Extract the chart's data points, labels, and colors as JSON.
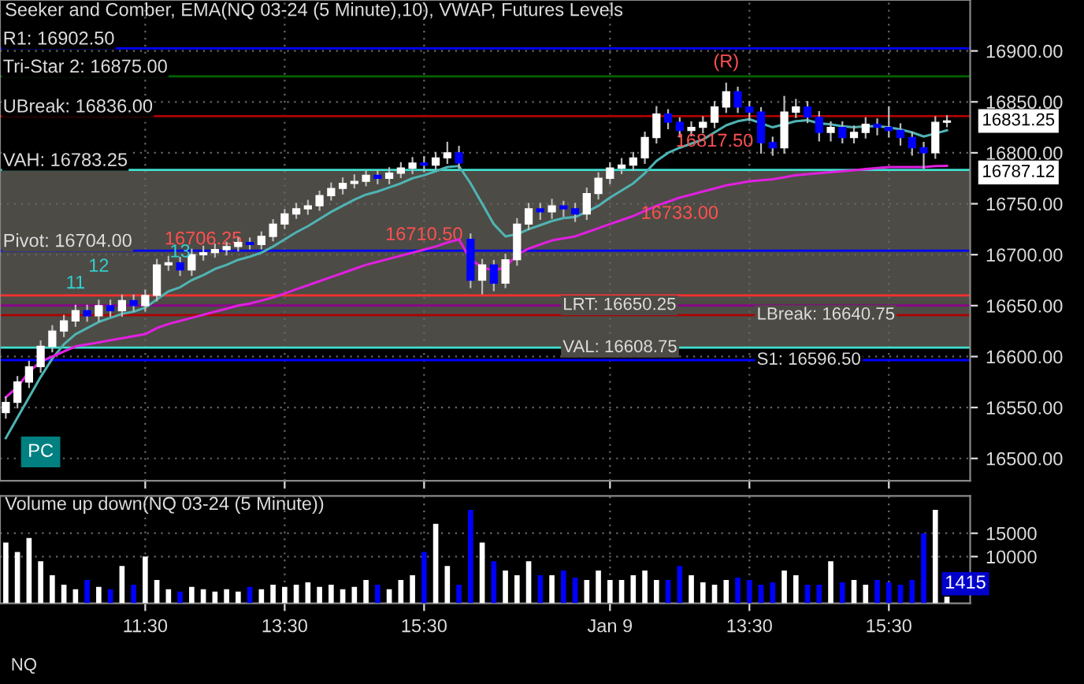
{
  "chart_data": [
    {
      "type": "candlestick",
      "title": "Seeker and Comber, EMA(NQ 03-24 (5 Minute),10), VWAP, Futures Levels",
      "categories": [
        null,
        null,
        null,
        null,
        null,
        null,
        null,
        null,
        null,
        null,
        null,
        null,
        null,
        null,
        null,
        null,
        null,
        null,
        null,
        null,
        null,
        null,
        null,
        null,
        null,
        null,
        null,
        null,
        null,
        null,
        null,
        null,
        null,
        null,
        null,
        null,
        null,
        null,
        null,
        null,
        null,
        null,
        null,
        null,
        null,
        null,
        null,
        null,
        null,
        null,
        null,
        null,
        null,
        null,
        null,
        null,
        null,
        null,
        null,
        null,
        null,
        null,
        null,
        null,
        null,
        null,
        null,
        null,
        null,
        null,
        null,
        null,
        null,
        null,
        null,
        null,
        null,
        null,
        null,
        null,
        null,
        null
      ],
      "ohlc": [
        [
          16545,
          16560,
          16540,
          16555
        ],
        [
          16555,
          16580,
          16550,
          16575
        ],
        [
          16575,
          16595,
          16570,
          16590
        ],
        [
          16590,
          16615,
          16585,
          16610
        ],
        [
          16610,
          16630,
          16605,
          16625
        ],
        [
          16625,
          16640,
          16620,
          16635
        ],
        [
          16635,
          16650,
          16630,
          16645
        ],
        [
          16645,
          16650,
          16635,
          16640
        ],
        [
          16640,
          16655,
          16635,
          16650
        ],
        [
          16650,
          16655,
          16640,
          16645
        ],
        [
          16645,
          16660,
          16640,
          16655
        ],
        [
          16655,
          16660,
          16645,
          16650
        ],
        [
          16650,
          16665,
          16645,
          16660
        ],
        [
          16660,
          16695,
          16655,
          16690
        ],
        [
          16690,
          16698,
          16685,
          16692
        ],
        [
          16692,
          16697,
          16680,
          16685
        ],
        [
          16685,
          16705,
          16680,
          16700
        ],
        [
          16700,
          16708,
          16695,
          16702
        ],
        [
          16702,
          16710,
          16698,
          16705
        ],
        [
          16705,
          16712,
          16700,
          16708
        ],
        [
          16708,
          16716,
          16704,
          16712
        ],
        [
          16712,
          16716,
          16706,
          16710
        ],
        [
          16710,
          16722,
          16706,
          16718
        ],
        [
          16718,
          16734,
          16714,
          16730
        ],
        [
          16730,
          16744,
          16726,
          16740
        ],
        [
          16740,
          16750,
          16736,
          16745
        ],
        [
          16745,
          16753,
          16740,
          16748
        ],
        [
          16748,
          16762,
          16744,
          16758
        ],
        [
          16758,
          16770,
          16754,
          16765
        ],
        [
          16765,
          16775,
          16760,
          16770
        ],
        [
          16770,
          16778,
          16766,
          16772
        ],
        [
          16772,
          16782,
          16768,
          16778
        ],
        [
          16778,
          16782,
          16770,
          16775
        ],
        [
          16775,
          16785,
          16770,
          16780
        ],
        [
          16780,
          16790,
          16776,
          16785
        ],
        [
          16785,
          16795,
          16780,
          16790
        ],
        [
          16790,
          16796,
          16782,
          16788
        ],
        [
          16788,
          16800,
          16784,
          16795
        ],
        [
          16795,
          16810,
          16790,
          16800
        ],
        [
          16800,
          16806,
          16785,
          16790
        ],
        [
          16715,
          16720,
          16668,
          16675
        ],
        [
          16675,
          16695,
          16662,
          16690
        ],
        [
          16690,
          16694,
          16665,
          16672
        ],
        [
          16672,
          16700,
          16668,
          16695
        ],
        [
          16695,
          16735,
          16690,
          16730
        ],
        [
          16730,
          16750,
          16725,
          16745
        ],
        [
          16745,
          16750,
          16735,
          16742
        ],
        [
          16742,
          16754,
          16736,
          16748
        ],
        [
          16748,
          16752,
          16738,
          16745
        ],
        [
          16745,
          16750,
          16733,
          16740
        ],
        [
          16740,
          16765,
          16735,
          16760
        ],
        [
          16760,
          16780,
          16755,
          16775
        ],
        [
          16775,
          16790,
          16770,
          16785
        ],
        [
          16785,
          16794,
          16780,
          16788
        ],
        [
          16788,
          16800,
          16783,
          16795
        ],
        [
          16795,
          16820,
          16790,
          16815
        ],
        [
          16815,
          16845,
          16810,
          16838
        ],
        [
          16838,
          16842,
          16824,
          16830
        ],
        [
          16830,
          16834,
          16816,
          16822
        ],
        [
          16822,
          16830,
          16817,
          16825
        ],
        [
          16825,
          16835,
          16820,
          16830
        ],
        [
          16830,
          16850,
          16825,
          16845
        ],
        [
          16845,
          16868,
          16840,
          16860
        ],
        [
          16860,
          16864,
          16840,
          16845
        ],
        [
          16845,
          16850,
          16832,
          16840
        ],
        [
          16840,
          16844,
          16800,
          16810
        ],
        [
          16810,
          16815,
          16798,
          16805
        ],
        [
          16805,
          16855,
          16800,
          16840
        ],
        [
          16840,
          16852,
          16835,
          16845
        ],
        [
          16845,
          16850,
          16830,
          16835
        ],
        [
          16835,
          16840,
          16812,
          16820
        ],
        [
          16820,
          16830,
          16812,
          16825
        ],
        [
          16825,
          16830,
          16810,
          16815
        ],
        [
          16815,
          16826,
          16810,
          16820
        ],
        [
          16820,
          16834,
          16815,
          16828
        ],
        [
          16828,
          16833,
          16818,
          16825
        ],
        [
          16825,
          16845,
          16816,
          16822
        ],
        [
          16822,
          16828,
          16808,
          16815
        ],
        [
          16815,
          16820,
          16798,
          16805
        ],
        [
          16805,
          16810,
          16785,
          16800
        ],
        [
          16800,
          16835,
          16795,
          16830
        ],
        [
          16830,
          16836,
          16826,
          16831.25
        ]
      ],
      "series": [
        {
          "type": "line",
          "color": "#4fb3b3",
          "values": [
            16520,
            16540,
            16560,
            16580,
            16598,
            16612,
            16622,
            16628,
            16634,
            16638,
            16642,
            16644,
            16648,
            16656,
            16664,
            16668,
            16675,
            16680,
            16686,
            16690,
            16695,
            16698,
            16702,
            16708,
            16715,
            16722,
            16728,
            16735,
            16742,
            16748,
            16754,
            16759,
            16762,
            16766,
            16770,
            16775,
            16778,
            16782,
            16786,
            16787,
            16770,
            16750,
            16730,
            16718,
            16720,
            16725,
            16729,
            16733,
            16736,
            16737,
            16742,
            16748,
            16756,
            16763,
            16770,
            16780,
            16792,
            16800,
            16805,
            16809,
            16813,
            16820,
            16827,
            16831,
            16833,
            16829,
            16825,
            16828,
            16831,
            16832,
            16829,
            16828,
            16826,
            16825,
            16826,
            16826,
            16825,
            16823,
            16820,
            16816,
            16819,
            16822
          ]
        },
        {
          "type": "line",
          "color": "#e020e0",
          "values": [
            16560,
            16570,
            16585,
            16595,
            16600,
            16605,
            16610,
            16612,
            16614,
            16616,
            16618,
            16620,
            16622,
            16628,
            16632,
            16635,
            16638,
            16641,
            16644,
            16647,
            16650,
            16652,
            16655,
            16658,
            16662,
            16666,
            16670,
            16674,
            16678,
            16682,
            16686,
            16690,
            16693,
            16696,
            16699,
            16702,
            16705,
            16708,
            16712,
            16715,
            16695,
            16688,
            16684,
            16688,
            16700,
            16706,
            16710,
            16714,
            16716,
            16718,
            16722,
            16726,
            16730,
            16734,
            16738,
            16743,
            16748,
            16752,
            16756,
            16759,
            16762,
            16765,
            16768,
            16770,
            16772,
            16773,
            16774,
            16776,
            16778,
            16779,
            16780,
            16781,
            16782,
            16783,
            16784,
            16785,
            16786,
            16786,
            16786,
            16786,
            16787,
            16787.12
          ]
        }
      ],
      "ylim": [
        16478,
        16950
      ],
      "yticks": [
        {
          "value": 16500,
          "label": "16500.00"
        },
        {
          "value": 16550,
          "label": "16550.00"
        },
        {
          "value": 16600,
          "label": "16600.00"
        },
        {
          "value": 16650,
          "label": "16650.00"
        },
        {
          "value": 16700,
          "label": "16700.00"
        },
        {
          "value": 16750,
          "label": "16750.00"
        },
        {
          "value": 16800,
          "label": "16800.00"
        },
        {
          "value": 16850,
          "label": "16850.00"
        },
        {
          "value": 16900,
          "label": "16900.00"
        }
      ],
      "tick_labels": "y",
      "grid": true,
      "bands": [
        {
          "axis": "y",
          "from": 16608.75,
          "to": 16783.25,
          "color": "#4d4b45"
        }
      ],
      "ref_lines": [
        {
          "axis": "y",
          "value": 16902.5,
          "label": "R1: 16902.50",
          "color": "#0000ff"
        },
        {
          "axis": "y",
          "value": 16875,
          "label": "Tri-Star 2: 16875.00",
          "color": "#006400"
        },
        {
          "axis": "y",
          "value": 16836,
          "label": "UBreak: 16836.00",
          "color": "#b00000"
        },
        {
          "axis": "y",
          "value": 16783.25,
          "label": "VAH: 16783.25",
          "color": "#40e0d0"
        },
        {
          "axis": "y",
          "value": 16704,
          "label": "Pivot: 16704.00",
          "color": "#0000ff"
        },
        {
          "axis": "y",
          "value": 16660,
          "color": "#ff3030"
        },
        {
          "axis": "y",
          "value": 16650.25,
          "label": "LRT: 16650.25",
          "color": "#8b008b"
        },
        {
          "axis": "y",
          "value": 16640.75,
          "label": "LBreak: 16640.75",
          "color": "#b00000"
        },
        {
          "axis": "y",
          "value": 16608.75,
          "label": "VAL: 16608.75",
          "color": "#40e0d0"
        },
        {
          "axis": "y",
          "value": 16596.5,
          "label": "S1: 16596.50",
          "color": "#0000ff"
        }
      ],
      "annotations": [
        {
          "text": "16706.25",
          "y": 16706.25
        },
        {
          "text": "16710.50",
          "y": 16710.5
        },
        "16733.00",
        "16817.50",
        "(R)",
        "PC",
        "11",
        "12",
        "13",
        "16831.25",
        "16787.12"
      ]
    },
    {
      "type": "bar",
      "title": "Volume up down(NQ 03-24 (5 Minute))",
      "categories": [
        null,
        null,
        null,
        null,
        null,
        null,
        null,
        null,
        null,
        null,
        null,
        null,
        "11:30",
        null,
        null,
        null,
        null,
        null,
        null,
        null,
        null,
        null,
        null,
        null,
        "13:30",
        null,
        null,
        null,
        null,
        null,
        null,
        null,
        null,
        null,
        null,
        null,
        "15:30",
        null,
        null,
        null,
        null,
        null,
        null,
        null,
        null,
        null,
        null,
        null,
        null,
        null,
        null,
        null,
        "Jan 9",
        null,
        null,
        null,
        null,
        null,
        null,
        null,
        null,
        null,
        null,
        null,
        "13:30",
        null,
        null,
        null,
        null,
        null,
        null,
        null,
        null,
        null,
        null,
        null,
        "15:30",
        null,
        null,
        null,
        null,
        null
      ],
      "values": [
        13000,
        11000,
        14000,
        9000,
        6000,
        4000,
        3000,
        5000,
        3500,
        3000,
        8000,
        4000,
        10000,
        5000,
        3000,
        2500,
        3500,
        3000,
        2500,
        3000,
        2500,
        3500,
        3000,
        4000,
        3500,
        4000,
        4500,
        3500,
        4000,
        3000,
        3500,
        5000,
        4000,
        3000,
        5000,
        6000,
        11000,
        17000,
        8000,
        4000,
        20000,
        13000,
        9000,
        7000,
        6000,
        9000,
        6000,
        6000,
        7000,
        5500,
        5000,
        7000,
        5000,
        5000,
        6000,
        7000,
        5000,
        5000,
        8000,
        6000,
        4500,
        4000,
        5000,
        5500,
        5000,
        4000,
        4500,
        7000,
        6000,
        4000,
        4000,
        9000,
        4500,
        5000,
        4000,
        5000,
        4500,
        4000,
        5000,
        15000,
        20000,
        1415
      ],
      "colors": [
        "#ffffff",
        "#ffffff",
        "#ffffff",
        "#ffffff",
        "#ffffff",
        "#ffffff",
        "#ffffff",
        "#0000ff",
        "#ffffff",
        "#0000ff",
        "#ffffff",
        "#0000ff",
        "#ffffff",
        "#ffffff",
        "#ffffff",
        "#0000ff",
        "#ffffff",
        "#ffffff",
        "#ffffff",
        "#ffffff",
        "#ffffff",
        "#0000ff",
        "#ffffff",
        "#ffffff",
        "#ffffff",
        "#ffffff",
        "#ffffff",
        "#ffffff",
        "#ffffff",
        "#ffffff",
        "#ffffff",
        "#ffffff",
        "#0000ff",
        "#ffffff",
        "#ffffff",
        "#ffffff",
        "#0000ff",
        "#ffffff",
        "#ffffff",
        "#0000ff",
        "#0000ff",
        "#ffffff",
        "#0000ff",
        "#ffffff",
        "#ffffff",
        "#ffffff",
        "#0000ff",
        "#ffffff",
        "#0000ff",
        "#0000ff",
        "#ffffff",
        "#ffffff",
        "#ffffff",
        "#ffffff",
        "#ffffff",
        "#ffffff",
        "#ffffff",
        "#0000ff",
        "#0000ff",
        "#ffffff",
        "#ffffff",
        "#ffffff",
        "#ffffff",
        "#0000ff",
        "#0000ff",
        "#0000ff",
        "#0000ff",
        "#ffffff",
        "#ffffff",
        "#0000ff",
        "#0000ff",
        "#ffffff",
        "#0000ff",
        "#ffffff",
        "#ffffff",
        "#0000ff",
        "#0000ff",
        "#0000ff",
        "#0000ff",
        "#0000ff",
        "#ffffff",
        "#ffffff"
      ],
      "value_labels": [
        null,
        null,
        null,
        null,
        null,
        null,
        null,
        null,
        null,
        null,
        null,
        null,
        null,
        null,
        null,
        null,
        null,
        null,
        null,
        null,
        null,
        null,
        null,
        null,
        null,
        null,
        null,
        null,
        null,
        null,
        null,
        null,
        null,
        null,
        null,
        null,
        null,
        null,
        null,
        null,
        null,
        null,
        null,
        null,
        null,
        null,
        null,
        null,
        null,
        null,
        null,
        null,
        null,
        null,
        null,
        null,
        null,
        null,
        null,
        null,
        null,
        null,
        null,
        null,
        null,
        null,
        null,
        null,
        null,
        null,
        null,
        null,
        null,
        null,
        null,
        null,
        null,
        null,
        null,
        null,
        null,
        "1415"
      ],
      "ylim": [
        0,
        23000
      ],
      "yticks": [
        10000,
        15000
      ],
      "grid": true,
      "annotations": [
        "NQ"
      ]
    }
  ]
}
